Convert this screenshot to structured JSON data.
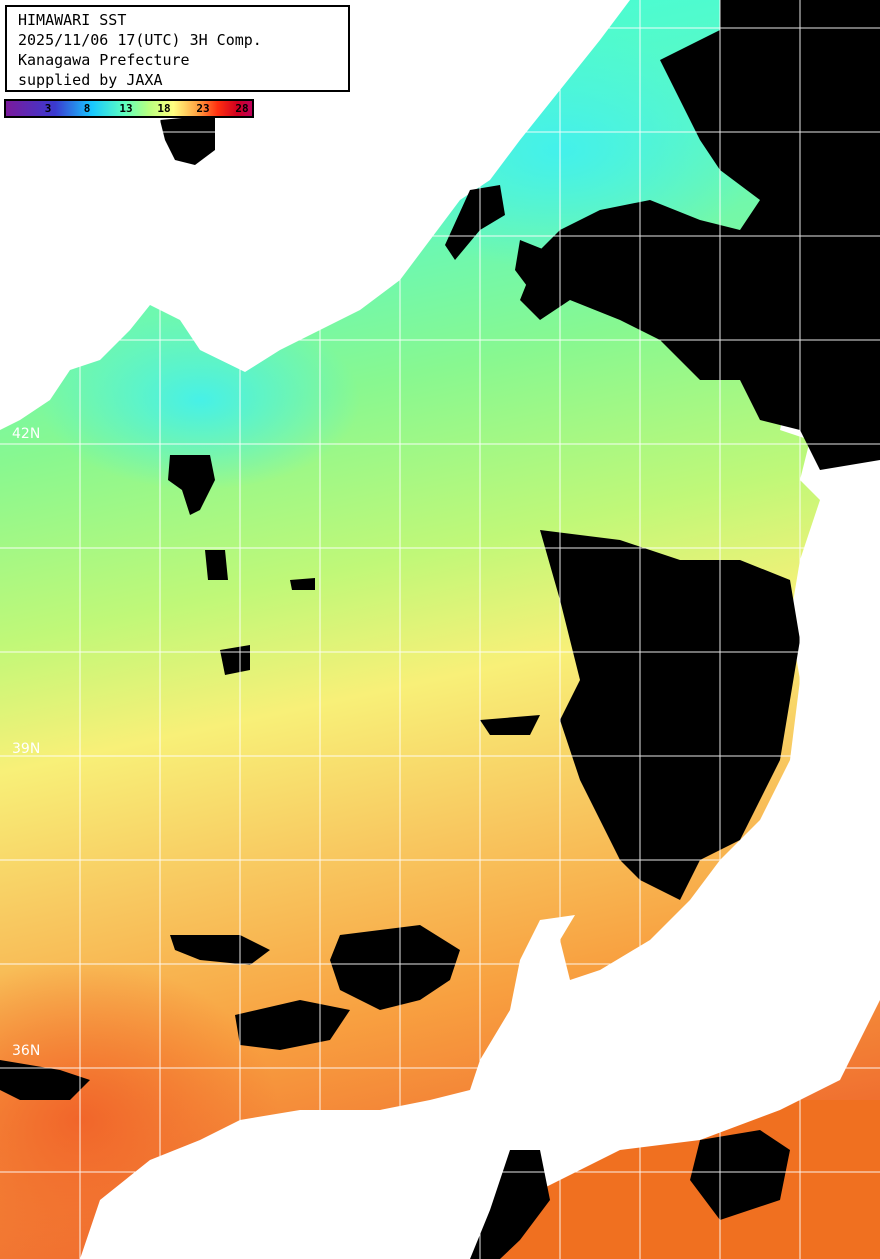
{
  "title": {
    "lines": [
      "HIMAWARI SST",
      "2025/11/06 17(UTC) 3H Comp.",
      "Kanagawa Prefecture",
      "supplied by JAXA"
    ]
  },
  "colorbar": {
    "unit_hint": "sea surface temperature (°C)",
    "ticks": [
      "3",
      "8",
      "13",
      "18",
      "23",
      "28"
    ],
    "colors": [
      "#7a1a9c",
      "#3a3ad0",
      "#18c8ff",
      "#5dffc0",
      "#b8ff80",
      "#ffff80",
      "#ffa040",
      "#ff3010",
      "#c0005a"
    ]
  },
  "map": {
    "latitude_labels": [
      "42N",
      "39N",
      "36N"
    ],
    "land_color": "#ffffff",
    "cloud_color": "#000000",
    "grid_color": "#ffffff"
  }
}
